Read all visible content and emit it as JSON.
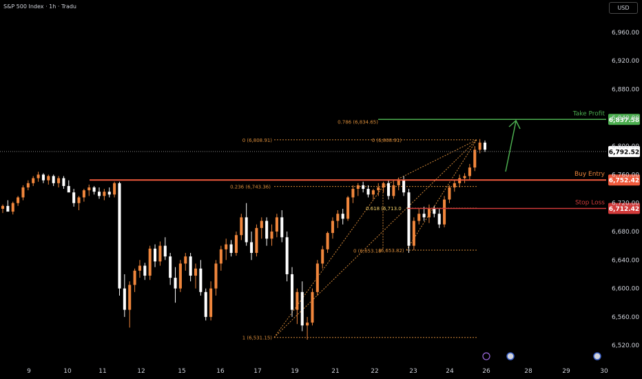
{
  "header": {
    "title": "S&P 500 Index · 1h · Tradu",
    "currency": "USD"
  },
  "chart_data": {
    "type": "candlestick",
    "ylim": [
      6496,
      6988
    ],
    "y_ticks": [
      6520,
      6560,
      6600,
      6640,
      6680,
      6720,
      6760,
      6800,
      6840,
      6880,
      6920,
      6960
    ],
    "y_tick_labels": [
      "6,520.00",
      "6,560.00",
      "6,600.00",
      "6,640.00",
      "6,680.00",
      "6,720.00",
      "6,760.00",
      "6,800.00",
      "6,840.00",
      "6,880.00",
      "6,920.00",
      "6,960.00"
    ],
    "x_ticks": [
      "9",
      "10",
      "11",
      "12",
      "15",
      "16",
      "17",
      "19",
      "21",
      "22",
      "23",
      "24",
      "26",
      "28",
      "29",
      "30"
    ],
    "colors": {
      "up": "#f0863c",
      "down": "#ffffff",
      "take_profit": "#4caf50",
      "buy_entry": "#f05a3c",
      "stop_loss": "#d23b3b",
      "fib": "#d98c3a"
    },
    "levels": [
      {
        "label": "Take Profit",
        "value": "6,837.58",
        "y": 6837.58
      },
      {
        "label": "Buy Entry",
        "value": "6,752.42",
        "y": 6752.42
      },
      {
        "label": "Stop Loss",
        "value": "6,712.42",
        "y": 6712.42
      },
      {
        "label": "",
        "value": "6,792.52",
        "y": 6792.52
      }
    ],
    "fib_left": [
      {
        "text": "0 (6,808.91)",
        "y": 6808.91
      },
      {
        "text": "0.236 (6,743.36)",
        "y": 6743.36
      },
      {
        "text": "1 (6,531.15)",
        "y": 6531.15
      }
    ],
    "fib_right": [
      {
        "text": "0.786 (6,834.65)",
        "y": 6834.65
      },
      {
        "text": "0 (6,808.91)",
        "y": 6808.91
      },
      {
        "text": "0.618 (6,713.0",
        "y": 6713.0
      },
      {
        "text": "0 (6,653.18",
        "y": 6653.18
      },
      {
        "text": "(6,653.82)",
        "y": 6653.82
      }
    ],
    "candles": [
      [
        6712,
        6718,
        6706,
        6716
      ],
      [
        6716,
        6724,
        6710,
        6708
      ],
      [
        6708,
        6722,
        6704,
        6720
      ],
      [
        6720,
        6730,
        6716,
        6728
      ],
      [
        6728,
        6745,
        6724,
        6742
      ],
      [
        6742,
        6752,
        6738,
        6748
      ],
      [
        6748,
        6758,
        6744,
        6755
      ],
      [
        6755,
        6764,
        6750,
        6760
      ],
      [
        6760,
        6762,
        6748,
        6752
      ],
      [
        6752,
        6760,
        6746,
        6758
      ],
      [
        6758,
        6760,
        6744,
        6748
      ],
      [
        6748,
        6758,
        6742,
        6755
      ],
      [
        6755,
        6758,
        6740,
        6744
      ],
      [
        6744,
        6752,
        6738,
        6735
      ],
      [
        6735,
        6740,
        6715,
        6720
      ],
      [
        6720,
        6730,
        6710,
        6728
      ],
      [
        6728,
        6740,
        6722,
        6738
      ],
      [
        6738,
        6746,
        6730,
        6742
      ],
      [
        6742,
        6744,
        6732,
        6736
      ],
      [
        6736,
        6742,
        6726,
        6730
      ],
      [
        6730,
        6740,
        6724,
        6736
      ],
      [
        6736,
        6742,
        6728,
        6732
      ],
      [
        6732,
        6750,
        6728,
        6748
      ],
      [
        6748,
        6750,
        6590,
        6600
      ],
      [
        6600,
        6620,
        6560,
        6570
      ],
      [
        6570,
        6610,
        6545,
        6605
      ],
      [
        6605,
        6628,
        6595,
        6625
      ],
      [
        6625,
        6640,
        6615,
        6632
      ],
      [
        6632,
        6636,
        6612,
        6618
      ],
      [
        6618,
        6660,
        6612,
        6656
      ],
      [
        6656,
        6662,
        6630,
        6638
      ],
      [
        6638,
        6666,
        6632,
        6660
      ],
      [
        6660,
        6672,
        6640,
        6645
      ],
      [
        6645,
        6650,
        6605,
        6615
      ],
      [
        6615,
        6630,
        6580,
        6600
      ],
      [
        6600,
        6640,
        6595,
        6635
      ],
      [
        6635,
        6650,
        6625,
        6645
      ],
      [
        6645,
        6650,
        6610,
        6618
      ],
      [
        6618,
        6635,
        6600,
        6628
      ],
      [
        6628,
        6640,
        6590,
        6595
      ],
      [
        6595,
        6600,
        6555,
        6560
      ],
      [
        6560,
        6610,
        6555,
        6600
      ],
      [
        6600,
        6640,
        6590,
        6635
      ],
      [
        6635,
        6660,
        6625,
        6655
      ],
      [
        6655,
        6670,
        6640,
        6662
      ],
      [
        6662,
        6668,
        6645,
        6650
      ],
      [
        6650,
        6680,
        6646,
        6675
      ],
      [
        6675,
        6705,
        6668,
        6700
      ],
      [
        6700,
        6720,
        6660,
        6665
      ],
      [
        6665,
        6680,
        6640,
        6650
      ],
      [
        6650,
        6690,
        6645,
        6685
      ],
      [
        6685,
        6700,
        6670,
        6695
      ],
      [
        6695,
        6700,
        6660,
        6670
      ],
      [
        6670,
        6690,
        6660,
        6680
      ],
      [
        6680,
        6705,
        6672,
        6700
      ],
      [
        6700,
        6710,
        6665,
        6672
      ],
      [
        6672,
        6680,
        6610,
        6620
      ],
      [
        6620,
        6630,
        6560,
        6570
      ],
      [
        6570,
        6600,
        6550,
        6595
      ],
      [
        6595,
        6610,
        6540,
        6548
      ],
      [
        6548,
        6560,
        6528,
        6552
      ],
      [
        6552,
        6600,
        6548,
        6595
      ],
      [
        6595,
        6640,
        6590,
        6635
      ],
      [
        6635,
        6660,
        6628,
        6655
      ],
      [
        6655,
        6680,
        6650,
        6678
      ],
      [
        6678,
        6700,
        6670,
        6695
      ],
      [
        6695,
        6710,
        6685,
        6705
      ],
      [
        6705,
        6712,
        6690,
        6698
      ],
      [
        6698,
        6730,
        6695,
        6728
      ],
      [
        6728,
        6745,
        6720,
        6740
      ],
      [
        6740,
        6748,
        6730,
        6745
      ],
      [
        6745,
        6750,
        6735,
        6740
      ],
      [
        6740,
        6745,
        6728,
        6732
      ],
      [
        6732,
        6740,
        6725,
        6738
      ],
      [
        6738,
        6748,
        6730,
        6742
      ],
      [
        6742,
        6750,
        6735,
        6748
      ],
      [
        6748,
        6752,
        6725,
        6730
      ],
      [
        6730,
        6750,
        6726,
        6745
      ],
      [
        6745,
        6756,
        6738,
        6752
      ],
      [
        6752,
        6758,
        6730,
        6735
      ],
      [
        6735,
        6740,
        6650,
        6660
      ],
      [
        6660,
        6700,
        6654,
        6695
      ],
      [
        6695,
        6712,
        6690,
        6705
      ],
      [
        6705,
        6715,
        6695,
        6700
      ],
      [
        6700,
        6718,
        6692,
        6712
      ],
      [
        6712,
        6716,
        6700,
        6705
      ],
      [
        6705,
        6712,
        6685,
        6690
      ],
      [
        6690,
        6730,
        6686,
        6725
      ],
      [
        6725,
        6745,
        6720,
        6742
      ],
      [
        6742,
        6752,
        6736,
        6748
      ],
      [
        6748,
        6760,
        6742,
        6755
      ],
      [
        6755,
        6762,
        6748,
        6758
      ],
      [
        6758,
        6775,
        6752,
        6770
      ],
      [
        6770,
        6800,
        6765,
        6795
      ],
      [
        6795,
        6810,
        6790,
        6805
      ],
      [
        6805,
        6808,
        6792,
        6795
      ]
    ]
  }
}
